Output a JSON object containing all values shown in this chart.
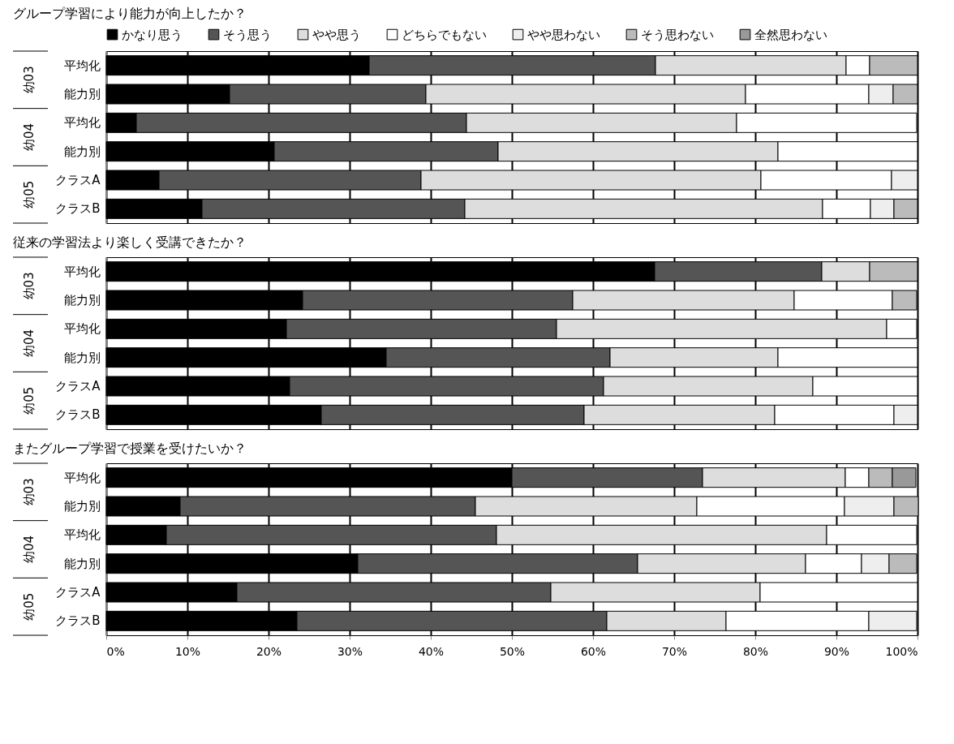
{
  "chart_data": [
    {
      "type": "bar",
      "orientation": "horizontal",
      "stacked": true,
      "title": "グループ学習により能力が向上したか？",
      "categories": [
        "平均化",
        "能力別",
        "平均化",
        "能力別",
        "クラスA",
        "クラスB"
      ],
      "annotations": [
        "幼03",
        "幼04",
        "幼05"
      ],
      "xlim": [
        0,
        100
      ],
      "grid": "x",
      "tick_labels": "y",
      "legend": "top",
      "series": [
        {
          "name": "かなり思う",
          "color": "#000000",
          "values": [
            32.4,
            15.2,
            3.7,
            20.7,
            6.5,
            11.8
          ]
        },
        {
          "name": "そう思う",
          "color": "#555555",
          "values": [
            35.3,
            24.2,
            40.7,
            27.6,
            32.3,
            32.4
          ]
        },
        {
          "name": "やや思う",
          "color": "#dddddd",
          "values": [
            23.5,
            39.4,
            33.3,
            34.5,
            41.9,
            44.1
          ]
        },
        {
          "name": "どちらでもない",
          "color": "#ffffff",
          "values": [
            2.9,
            15.2,
            22.2,
            17.2,
            16.1,
            5.9
          ]
        },
        {
          "name": "やや思わない",
          "color": "#eeeeee",
          "values": [
            0,
            3.0,
            0,
            0,
            3.2,
            2.9
          ]
        },
        {
          "name": "そう思わない",
          "color": "#bbbbbb",
          "values": [
            5.9,
            3.0,
            0,
            0,
            0,
            2.9
          ]
        },
        {
          "name": "全然思わない",
          "color": "#999999",
          "values": [
            0,
            0,
            0,
            0,
            0,
            0
          ]
        }
      ]
    },
    {
      "type": "bar",
      "orientation": "horizontal",
      "stacked": true,
      "title": "従来の学習法より楽しく受講できたか？",
      "categories": [
        "平均化",
        "能力別",
        "平均化",
        "能力別",
        "クラスA",
        "クラスB"
      ],
      "annotations": [
        "幼03",
        "幼04",
        "幼05"
      ],
      "xlim": [
        0,
        100
      ],
      "grid": "x",
      "tick_labels": "y",
      "series": [
        {
          "color": "#000000",
          "values": [
            67.6,
            24.2,
            22.2,
            34.5,
            22.6,
            26.5
          ]
        },
        {
          "color": "#555555",
          "values": [
            20.6,
            33.3,
            33.3,
            27.6,
            38.7,
            32.4
          ]
        },
        {
          "color": "#dddddd",
          "values": [
            5.9,
            27.3,
            40.7,
            20.7,
            25.8,
            23.5
          ]
        },
        {
          "color": "#ffffff",
          "values": [
            0,
            12.1,
            3.7,
            17.2,
            12.9,
            14.7
          ]
        },
        {
          "color": "#eeeeee",
          "values": [
            0,
            0,
            0,
            0,
            0,
            2.9
          ]
        },
        {
          "color": "#bbbbbb",
          "values": [
            5.9,
            3.0,
            0,
            0,
            0,
            0
          ]
        },
        {
          "color": "#999999",
          "values": [
            0,
            0,
            0,
            0,
            0,
            0
          ]
        }
      ]
    },
    {
      "type": "bar",
      "orientation": "horizontal",
      "stacked": true,
      "title": "またグループ学習で授業を受けたいか？",
      "categories": [
        "平均化",
        "能力別",
        "平均化",
        "能力別",
        "クラスA",
        "クラスB"
      ],
      "annotations": [
        "幼03",
        "幼04",
        "幼05"
      ],
      "xlim": [
        0,
        100
      ],
      "grid": "x",
      "xticks": [
        {
          "value": 0,
          "label": "0%"
        },
        {
          "value": 10,
          "label": "10%"
        },
        {
          "value": 20,
          "label": "20%"
        },
        {
          "value": 30,
          "label": "30%"
        },
        {
          "value": 40,
          "label": "40%"
        },
        {
          "value": 50,
          "label": "50%"
        },
        {
          "value": 60,
          "label": "60%"
        },
        {
          "value": 70,
          "label": "70%"
        },
        {
          "value": 80,
          "label": "80%"
        },
        {
          "value": 90,
          "label": "90%"
        },
        {
          "value": 100,
          "label": "100%"
        }
      ],
      "series": [
        {
          "color": "#000000",
          "values": [
            50.0,
            9.1,
            7.4,
            31.0,
            16.1,
            23.5
          ]
        },
        {
          "color": "#555555",
          "values": [
            23.5,
            36.4,
            40.7,
            34.5,
            38.7,
            38.2
          ]
        },
        {
          "color": "#dddddd",
          "values": [
            17.6,
            27.3,
            40.7,
            20.7,
            25.8,
            14.7
          ]
        },
        {
          "color": "#ffffff",
          "values": [
            2.9,
            18.2,
            11.1,
            6.9,
            19.4,
            17.6
          ]
        },
        {
          "color": "#eeeeee",
          "values": [
            0,
            6.1,
            0,
            3.4,
            0,
            5.9
          ]
        },
        {
          "color": "#bbbbbb",
          "values": [
            2.9,
            3.0,
            0,
            3.4,
            0,
            0
          ]
        },
        {
          "color": "#999999",
          "values": [
            2.9,
            0,
            0,
            0,
            0,
            0
          ]
        }
      ]
    }
  ]
}
